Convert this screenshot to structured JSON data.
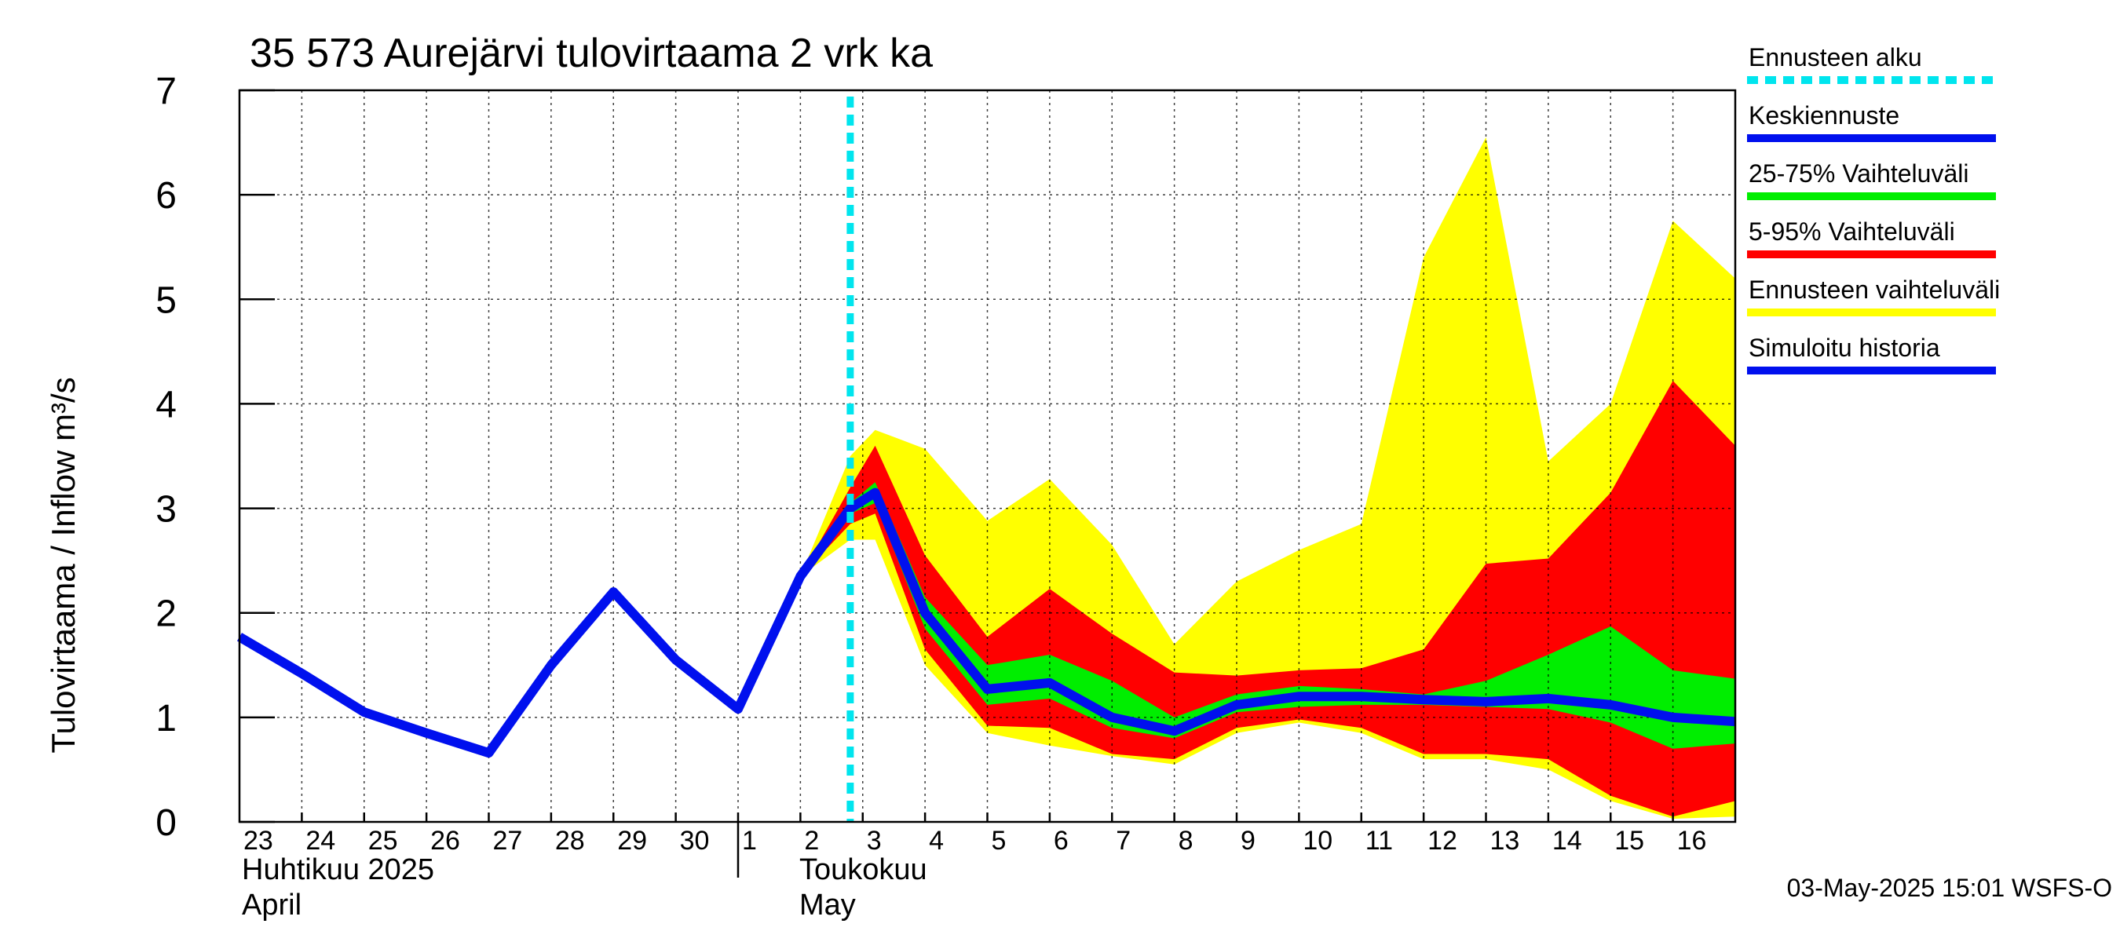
{
  "chart_data": {
    "type": "area",
    "title": "35 573 Aurejärvi tulovirtaama 2 vrk ka",
    "ylabel": "Tulovirtaama / Inflow    m³/s",
    "xlabel": "",
    "ylim": [
      0,
      7
    ],
    "yticks": [
      "0",
      "1",
      "2",
      "3",
      "4",
      "5",
      "6",
      "7"
    ],
    "x_tick_labels": [
      "23",
      "24",
      "25",
      "26",
      "27",
      "28",
      "29",
      "30",
      "1",
      "2",
      "3",
      "4",
      "5",
      "6",
      "7",
      "8",
      "9",
      "10",
      "11",
      "12",
      "13",
      "14",
      "15",
      "16"
    ],
    "months": [
      {
        "fi": "Huhtikuu  2025",
        "en": "April"
      },
      {
        "fi": "Toukokuu",
        "en": "May"
      }
    ],
    "forecast_start_day": 9.8,
    "history": {
      "name": "Simuloitu historia",
      "x": [
        0,
        1,
        2,
        3,
        4,
        5,
        6,
        7,
        8,
        9,
        9.8
      ],
      "y": [
        1.77,
        1.42,
        1.05,
        0.85,
        0.66,
        1.5,
        2.2,
        1.55,
        1.08,
        2.35,
        3.0
      ]
    },
    "forecast": {
      "x": [
        9,
        9.8,
        10.2,
        11,
        12,
        13,
        14,
        15,
        16,
        17,
        18,
        19,
        20,
        21,
        22,
        23,
        24
      ],
      "mean": [
        2.35,
        3.0,
        3.15,
        2.0,
        1.27,
        1.33,
        1.0,
        0.87,
        1.12,
        1.2,
        1.2,
        1.17,
        1.15,
        1.18,
        1.12,
        1.0,
        0.96
      ],
      "p25": [
        2.35,
        2.95,
        3.05,
        1.85,
        1.12,
        1.18,
        0.9,
        0.8,
        1.05,
        1.1,
        1.12,
        1.12,
        1.1,
        1.08,
        0.95,
        0.7,
        0.75
      ],
      "p75": [
        2.35,
        3.05,
        3.25,
        2.15,
        1.5,
        1.6,
        1.35,
        1.0,
        1.22,
        1.3,
        1.27,
        1.22,
        1.35,
        1.6,
        1.87,
        1.45,
        1.37
      ],
      "p5": [
        2.35,
        2.85,
        2.95,
        1.65,
        0.92,
        0.9,
        0.65,
        0.6,
        0.9,
        0.98,
        0.9,
        0.65,
        0.65,
        0.6,
        0.25,
        0.05,
        0.2
      ],
      "p95": [
        2.35,
        3.2,
        3.6,
        2.55,
        1.77,
        2.23,
        1.8,
        1.43,
        1.4,
        1.45,
        1.47,
        1.65,
        2.47,
        2.52,
        3.15,
        4.22,
        3.6
      ],
      "min": [
        2.35,
        2.7,
        2.7,
        1.5,
        0.85,
        0.73,
        0.63,
        0.55,
        0.85,
        0.95,
        0.85,
        0.6,
        0.6,
        0.5,
        0.2,
        0.03,
        0.05
      ],
      "max": [
        2.35,
        3.5,
        3.75,
        3.57,
        2.88,
        3.28,
        2.65,
        1.7,
        2.3,
        2.6,
        2.85,
        5.4,
        6.55,
        3.45,
        4.0,
        5.75,
        5.2
      ]
    },
    "legend": [
      {
        "label": "Ennusteen alku",
        "color": "#00e5ee",
        "style": "dashed"
      },
      {
        "label": "Keskiennuste",
        "color": "#0010ee",
        "style": "line"
      },
      {
        "label": "25-75% Vaihteluväli",
        "color": "#00ee00",
        "style": "line"
      },
      {
        "label": "5-95% Vaihteluväli",
        "color": "#ff0000",
        "style": "line"
      },
      {
        "label": "Ennusteen vaihteluväli",
        "color": "#ffff00",
        "style": "line"
      },
      {
        "label": "Simuloitu historia",
        "color": "#0010ee",
        "style": "line"
      }
    ],
    "colors": {
      "range": "#ffff00",
      "p5_95": "#ff0000",
      "p25_75": "#00ee00",
      "mean": "#0010ee",
      "history": "#0010ee",
      "forecast_start": "#00e5ee"
    },
    "footer": "03-May-2025 15:01 WSFS-O"
  }
}
